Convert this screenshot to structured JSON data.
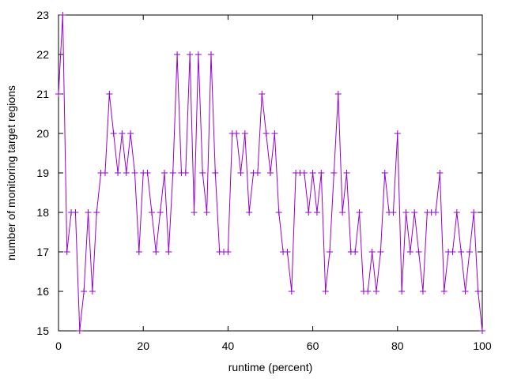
{
  "chart_data": {
    "type": "line",
    "xlabel": "runtime (percent)",
    "ylabel": "number of monitoring target regions",
    "xlim": [
      0,
      100
    ],
    "ylim": [
      15,
      23
    ],
    "xticks": [
      0,
      20,
      40,
      60,
      80,
      100
    ],
    "yticks": [
      15,
      16,
      17,
      18,
      19,
      20,
      21,
      22,
      23
    ],
    "grid": false,
    "marker": "plus",
    "series": [
      {
        "color": "#9400d3",
        "x": [
          0,
          1,
          2,
          3,
          4,
          5,
          6,
          7,
          8,
          9,
          10,
          11,
          12,
          13,
          14,
          15,
          16,
          17,
          18,
          19,
          20,
          21,
          22,
          23,
          24,
          25,
          26,
          27,
          28,
          29,
          30,
          31,
          32,
          33,
          34,
          35,
          36,
          37,
          38,
          39,
          40,
          41,
          42,
          43,
          44,
          45,
          46,
          47,
          48,
          49,
          50,
          51,
          52,
          53,
          54,
          55,
          56,
          57,
          58,
          59,
          60,
          61,
          62,
          63,
          64,
          65,
          66,
          67,
          68,
          69,
          70,
          71,
          72,
          73,
          74,
          75,
          76,
          77,
          78,
          79,
          80,
          81,
          82,
          83,
          84,
          85,
          86,
          87,
          88,
          89,
          90,
          91,
          92,
          93,
          94,
          95,
          96,
          97,
          98,
          99,
          100
        ],
        "y": [
          21,
          23,
          17,
          18,
          18,
          15,
          16,
          18,
          16,
          18,
          19,
          19,
          21,
          20,
          19,
          20,
          19,
          20,
          19,
          17,
          19,
          19,
          18,
          17,
          18,
          19,
          17,
          19,
          22,
          19,
          19,
          22,
          18,
          22,
          19,
          18,
          22,
          19,
          17,
          17,
          17,
          20,
          20,
          19,
          20,
          18,
          19,
          19,
          21,
          20,
          19,
          20,
          18,
          17,
          17,
          16,
          19,
          19,
          19,
          18,
          19,
          18,
          19,
          16,
          17,
          19,
          21,
          18,
          19,
          17,
          17,
          18,
          16,
          16,
          17,
          16,
          17,
          19,
          18,
          18,
          20,
          16,
          18,
          17,
          18,
          17,
          16,
          18,
          18,
          18,
          19,
          16,
          17,
          17,
          18,
          17,
          16,
          17,
          18,
          16,
          15
        ]
      }
    ]
  }
}
